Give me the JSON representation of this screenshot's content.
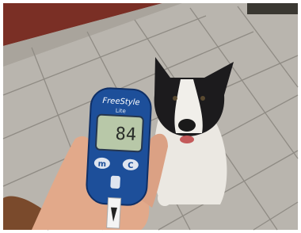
{
  "photo": {
    "meter": {
      "brand": "FreeStyle",
      "model": "Lite",
      "reading": 84,
      "buttons": [
        "m",
        "C"
      ]
    }
  }
}
